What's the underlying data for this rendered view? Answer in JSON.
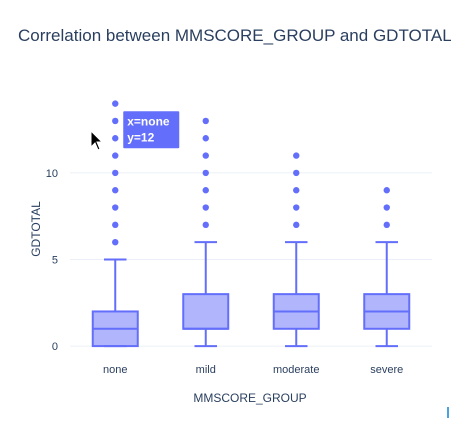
{
  "chart_data": {
    "type": "box",
    "title": "Correlation between MMSCORE_GROUP and GDTOTAL",
    "xlabel": "MMSCORE_GROUP",
    "ylabel": "GDTOTAL",
    "categories": [
      "none",
      "mild",
      "moderate",
      "severe"
    ],
    "ylim": [
      -0.4,
      14.4
    ],
    "yticks": [
      0,
      5,
      10
    ],
    "box_color": "#636efa",
    "box_fill": "rgba(99,110,250,0.5)",
    "boxes": [
      {
        "category": "none",
        "min": 0,
        "q1": 0,
        "median": 1,
        "q3": 2,
        "max": 5,
        "outliers": [
          6,
          7,
          8,
          9,
          10,
          11,
          12,
          13,
          14
        ]
      },
      {
        "category": "mild",
        "min": 0,
        "q1": 1,
        "median": 1,
        "q3": 3,
        "max": 6,
        "outliers": [
          7,
          8,
          9,
          10,
          11,
          12,
          13
        ]
      },
      {
        "category": "moderate",
        "min": 0,
        "q1": 1,
        "median": 2,
        "q3": 3,
        "max": 6,
        "outliers": [
          7,
          8,
          9,
          10,
          11
        ]
      },
      {
        "category": "severe",
        "min": 0,
        "q1": 1,
        "median": 2,
        "q3": 3,
        "max": 6,
        "outliers": [
          7,
          8,
          9
        ]
      }
    ],
    "hover": {
      "line1": "x=none",
      "line2": "y=12",
      "category": "none",
      "value": 12
    }
  }
}
